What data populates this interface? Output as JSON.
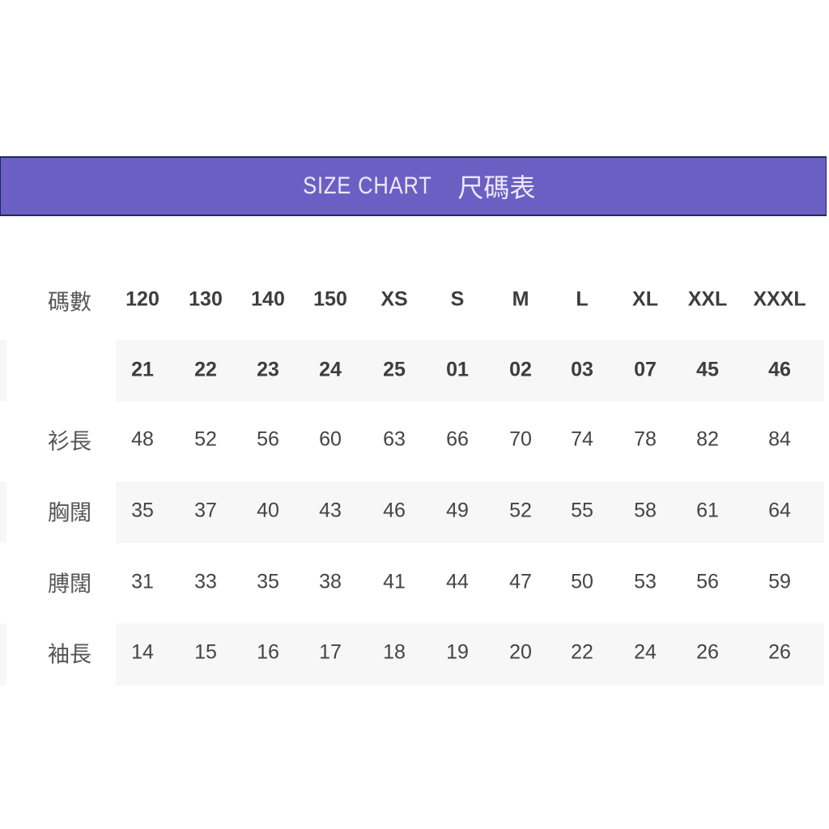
{
  "title": {
    "en": "SIZE CHART",
    "zh": "尺碼表"
  },
  "colors": {
    "banner": "#6b5fc4",
    "banner_text": "#ece8fb",
    "row_band": "#f7f7f7"
  },
  "table": {
    "header_label": "碼數",
    "sizes": [
      "120",
      "130",
      "140",
      "150",
      "XS",
      "S",
      "M",
      "L",
      "XL",
      "XXL",
      "XXXL"
    ],
    "codes": [
      "21",
      "22",
      "23",
      "24",
      "25",
      "01",
      "02",
      "03",
      "07",
      "45",
      "46"
    ],
    "rows": [
      {
        "label": "衫長",
        "values": [
          "48",
          "52",
          "56",
          "60",
          "63",
          "66",
          "70",
          "74",
          "78",
          "82",
          "84"
        ]
      },
      {
        "label": "胸闊",
        "values": [
          "35",
          "37",
          "40",
          "43",
          "46",
          "49",
          "52",
          "55",
          "58",
          "61",
          "64"
        ]
      },
      {
        "label": "膊闊",
        "values": [
          "31",
          "33",
          "35",
          "38",
          "41",
          "44",
          "47",
          "50",
          "53",
          "56",
          "59"
        ]
      },
      {
        "label": "袖長",
        "values": [
          "14",
          "15",
          "16",
          "17",
          "18",
          "19",
          "20",
          "22",
          "24",
          "26",
          "26"
        ]
      }
    ]
  }
}
